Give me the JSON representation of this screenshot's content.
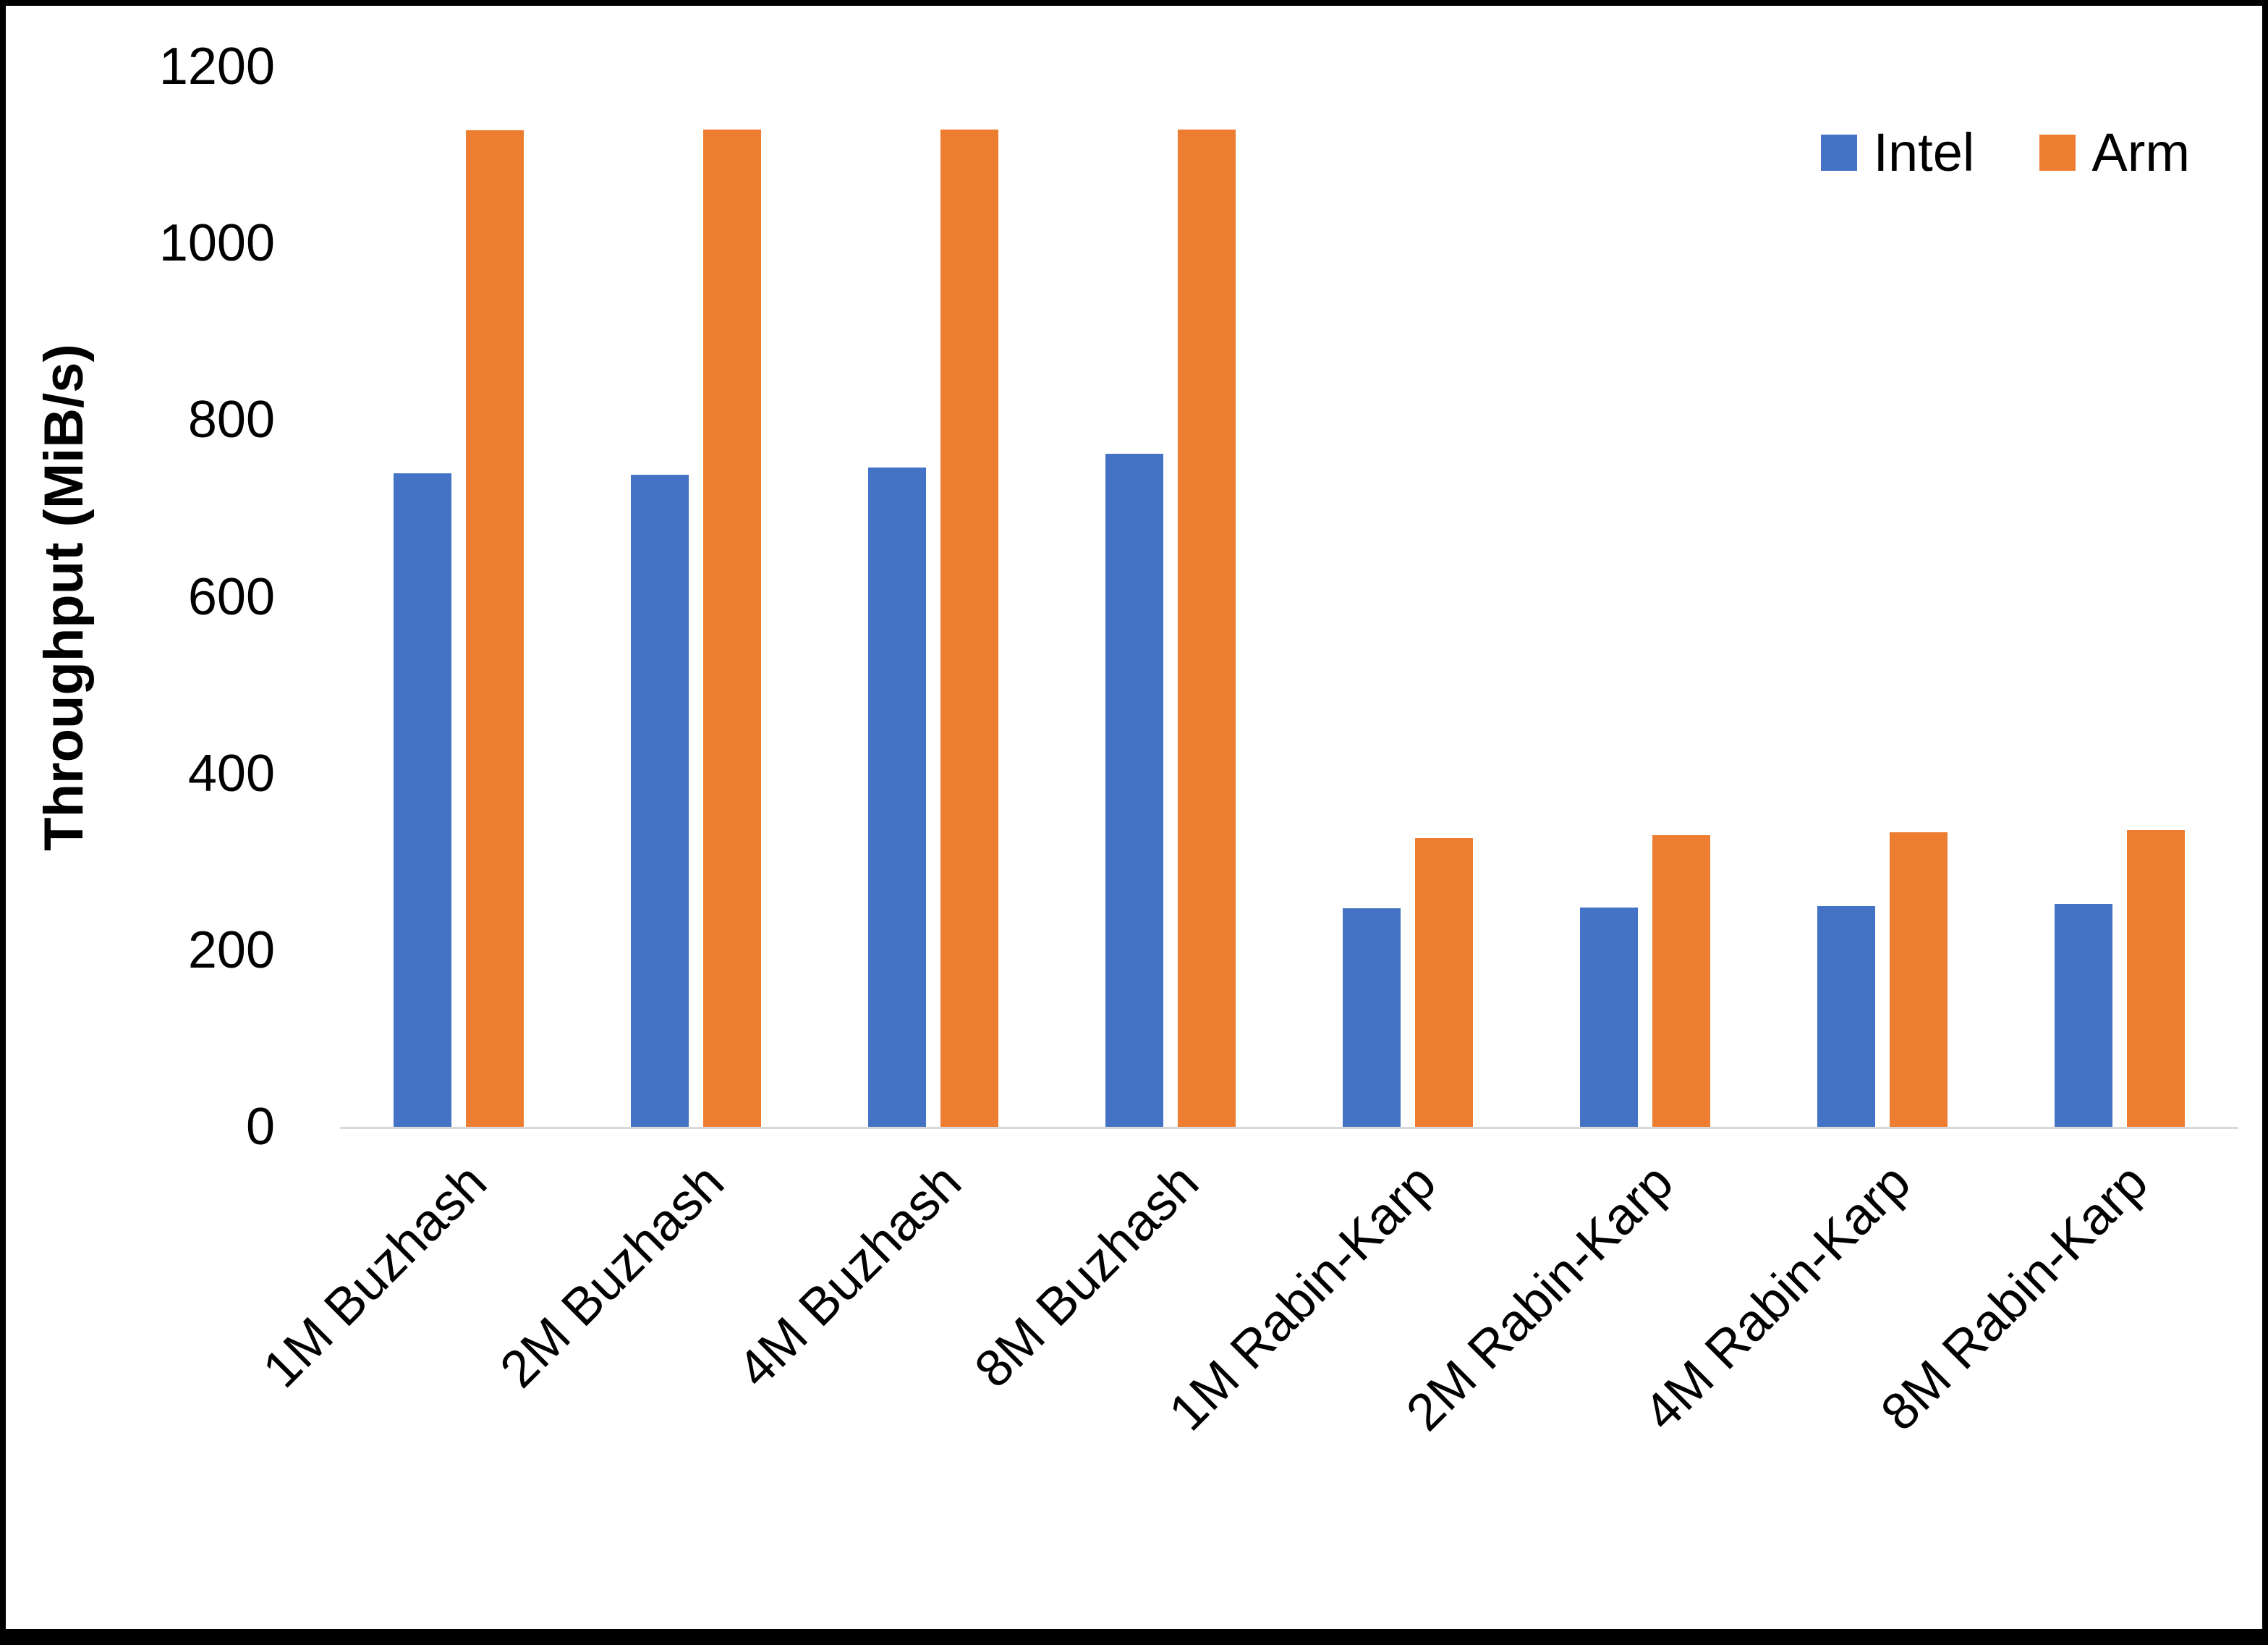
{
  "figure": {
    "background": "#ffffff",
    "border_color": "#000000",
    "axis_line_color": "#d9d9d9"
  },
  "chart_data": {
    "type": "bar",
    "title": "",
    "xlabel": "",
    "ylabel": "Throughput (MiB/s)",
    "ylim": [
      0,
      1200
    ],
    "yticks": [
      0,
      200,
      400,
      600,
      800,
      1000,
      1200
    ],
    "grid": false,
    "legend_position": "top-right",
    "categories": [
      "1M Buzhash",
      "2M Buzhash",
      "4M Buzhash",
      "8M Buzhash",
      "1M Rabin-Karp",
      "2M Rabin-Karp",
      "4M Rabin-Karp",
      "8M Rabin-Karp"
    ],
    "series": [
      {
        "name": "Intel",
        "color": "#4472C4",
        "values": [
          740,
          738,
          746,
          762,
          247,
          248,
          250,
          252
        ]
      },
      {
        "name": "Arm",
        "color": "#ED7D31",
        "values": [
          1128,
          1129,
          1129,
          1129,
          327,
          330,
          333,
          336
        ]
      }
    ]
  }
}
